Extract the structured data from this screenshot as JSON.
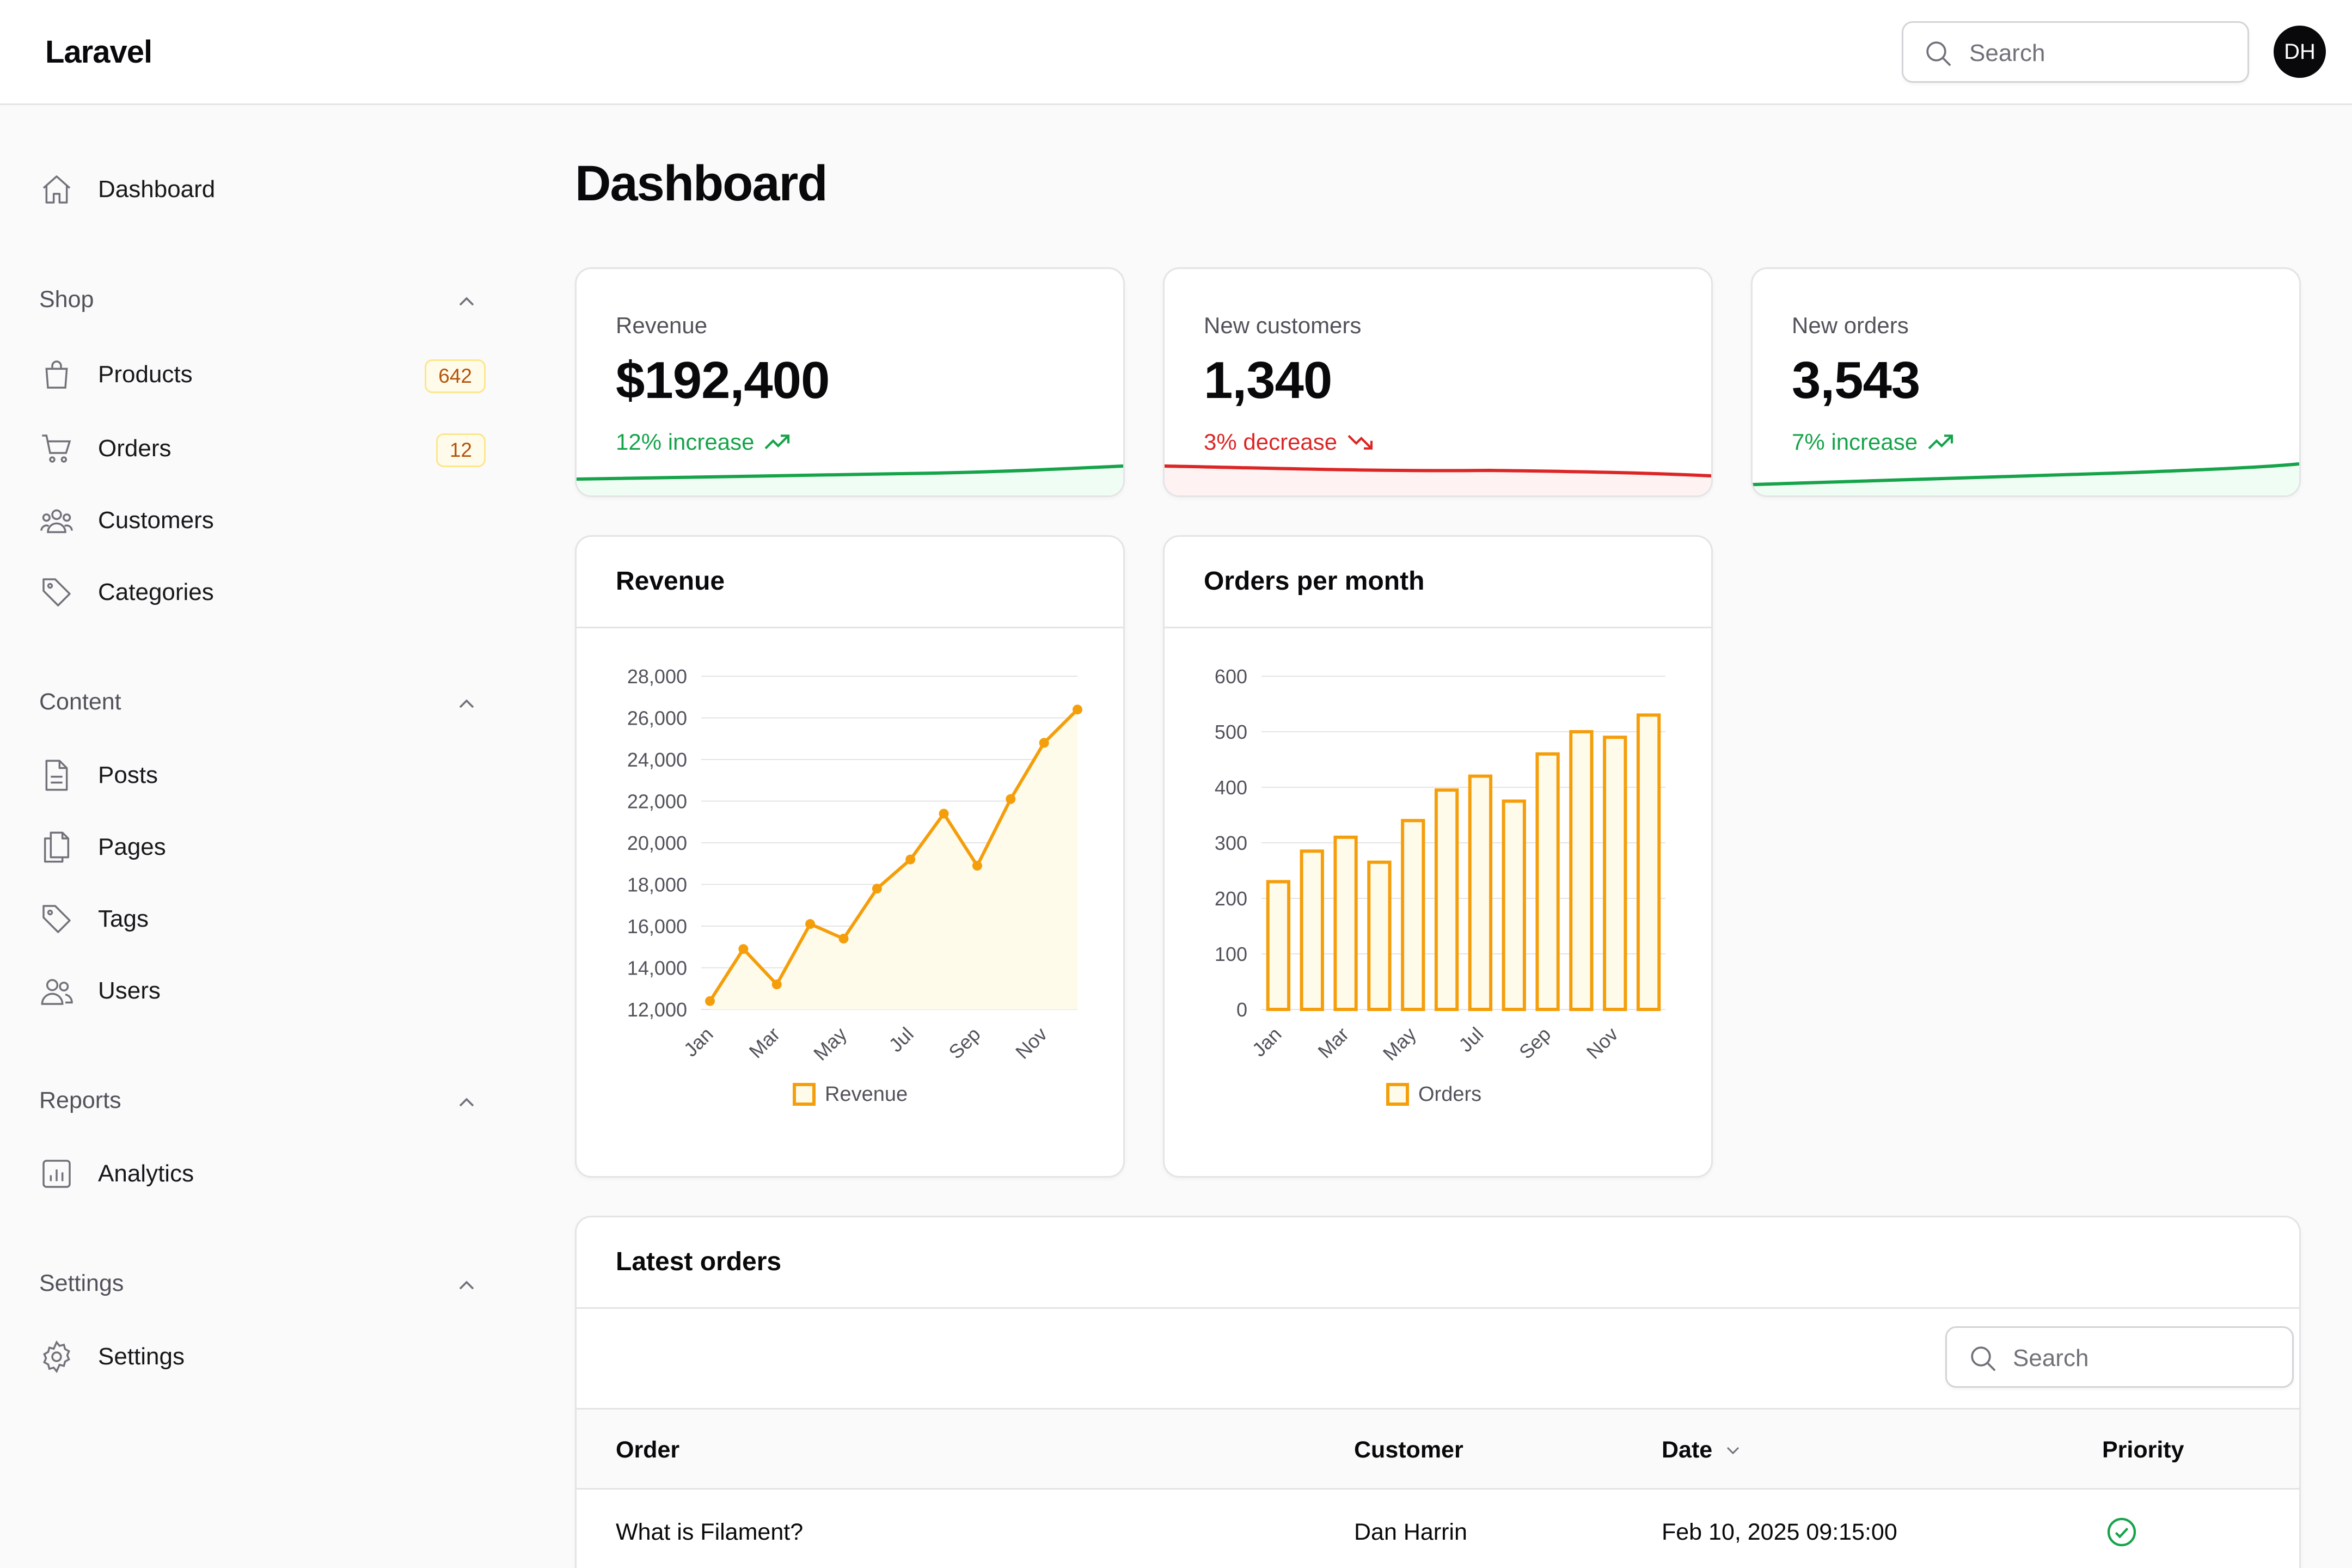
{
  "app": {
    "brand": "Laravel",
    "search_placeholder": "Search",
    "avatar_initials": "DH"
  },
  "sidebar": {
    "dashboard": {
      "label": "Dashboard",
      "icon": "home-icon"
    },
    "groups": [
      {
        "label": "Shop",
        "items": [
          {
            "label": "Products",
            "badge": "642",
            "icon": "shopping-bag-icon"
          },
          {
            "label": "Orders",
            "badge": "12",
            "icon": "shopping-cart-icon"
          },
          {
            "label": "Customers",
            "icon": "user-group-icon"
          },
          {
            "label": "Categories",
            "icon": "tag-icon"
          }
        ]
      },
      {
        "label": "Content",
        "items": [
          {
            "label": "Posts",
            "icon": "document-icon"
          },
          {
            "label": "Pages",
            "icon": "documents-icon"
          },
          {
            "label": "Tags",
            "icon": "tag-icon"
          },
          {
            "label": "Users",
            "icon": "users-icon"
          }
        ]
      },
      {
        "label": "Reports",
        "items": [
          {
            "label": "Analytics",
            "icon": "chart-bar-icon"
          }
        ]
      },
      {
        "label": "Settings",
        "items": [
          {
            "label": "Settings",
            "icon": "cog-icon"
          }
        ]
      }
    ]
  },
  "page": {
    "title": "Dashboard"
  },
  "stats": [
    {
      "label": "Revenue",
      "value": "$192,400",
      "trend": "12% increase",
      "direction": "up"
    },
    {
      "label": "New customers",
      "value": "1,340",
      "trend": "3% decrease",
      "direction": "down"
    },
    {
      "label": "New orders",
      "value": "3,543",
      "trend": "7% increase",
      "direction": "up"
    }
  ],
  "colors": {
    "accent": "#f59e0b",
    "up": "#16a34a",
    "down": "#dc2626"
  },
  "chart_data": [
    {
      "type": "area",
      "title": "Revenue",
      "categories": [
        "Jan",
        "Feb",
        "Mar",
        "Apr",
        "May",
        "Jun",
        "Jul",
        "Aug",
        "Sep",
        "Oct",
        "Nov",
        "Dec"
      ],
      "x_tick_labels": [
        "Jan",
        "Mar",
        "May",
        "Jul",
        "Sep",
        "Nov"
      ],
      "series": [
        {
          "name": "Revenue",
          "values": [
            12400,
            14900,
            13200,
            16100,
            15400,
            17800,
            19200,
            21400,
            18900,
            22100,
            24800,
            26400
          ]
        }
      ],
      "ylim": [
        12000,
        28000
      ],
      "y_ticks": [
        "12,000",
        "14,000",
        "16,000",
        "18,000",
        "20,000",
        "22,000",
        "24,000",
        "26,000",
        "28,000"
      ],
      "grid": true,
      "legend": "bottom"
    },
    {
      "type": "bar",
      "title": "Orders per month",
      "categories": [
        "Jan",
        "Feb",
        "Mar",
        "Apr",
        "May",
        "Jun",
        "Jul",
        "Aug",
        "Sep",
        "Oct",
        "Nov",
        "Dec"
      ],
      "x_tick_labels": [
        "Jan",
        "Mar",
        "May",
        "Jul",
        "Sep",
        "Nov"
      ],
      "series": [
        {
          "name": "Orders",
          "values": [
            230,
            285,
            310,
            265,
            340,
            395,
            420,
            375,
            460,
            500,
            490,
            530
          ]
        }
      ],
      "ylim": [
        0,
        600
      ],
      "y_ticks": [
        "0",
        "100",
        "200",
        "300",
        "400",
        "500",
        "600"
      ],
      "grid": true,
      "legend": "bottom"
    }
  ],
  "orders": {
    "title": "Latest orders",
    "search_placeholder": "Search",
    "columns": [
      "Order",
      "Customer",
      "Date",
      "Priority"
    ],
    "rows": [
      {
        "order": "What is Filament?",
        "customer": "Dan Harrin",
        "date": "Feb 10, 2025 09:15:00",
        "priority": "check-circle-icon"
      }
    ]
  }
}
